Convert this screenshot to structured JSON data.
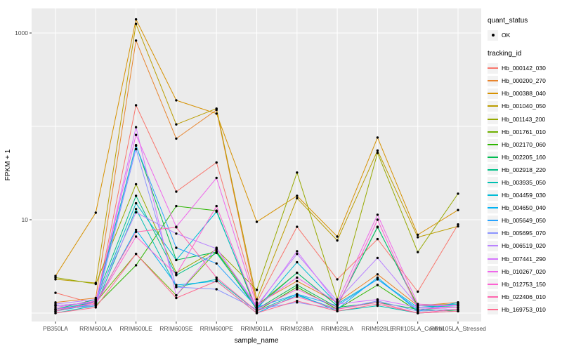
{
  "figure": {
    "background": "#FFFFFF",
    "panel_background": "#EBEBEB",
    "grid_color": "#FFFFFF",
    "tick_color": "#333333",
    "axis_text_color": "#4D4D4D",
    "axis_title_color": "#000000",
    "point_color": "#000000"
  },
  "legend": {
    "quant_status_title": "quant_status",
    "quant_status_items": [
      {
        "label": "OK",
        "symbol": "point"
      }
    ],
    "tracking_id_title": "tracking_id"
  },
  "chart_data": {
    "type": "line",
    "title": "",
    "xlabel": "sample_name",
    "ylabel": "FPKM + 1",
    "y_scale": "log10",
    "ylim": [
      0.82,
      1840
    ],
    "grid": true,
    "legend_position": "right",
    "y_axis_ticks": [
      {
        "label": "1000",
        "value": 1000
      },
      {
        "label": "10",
        "value": 10
      }
    ],
    "y_gridline_values": [
      1,
      10,
      100,
      1000
    ],
    "categories": [
      "PB350LA",
      "RRIM600LA",
      "RRIM600LE",
      "RRIM600SE",
      "RRIM600PE",
      "RRIM901LA",
      "RRIM928BA",
      "RRIM928LA",
      "RRIM928LE",
      "RRII105LA_Control",
      "RRII105LA_Stressed"
    ],
    "series": [
      {
        "name": "Hb_000142_030",
        "color": "#F8766D",
        "values": [
          1.65,
          1.25,
          168,
          20,
          41,
          1.3,
          8.4,
          2.3,
          6.2,
          1.7,
          8.9
        ]
      },
      {
        "name": "Hb_000200_270",
        "color": "#E8842C",
        "values": [
          1.3,
          1.45,
          830,
          74,
          150,
          1.25,
          2.2,
          1.3,
          2.6,
          1.2,
          1.3
        ]
      },
      {
        "name": "Hb_000388_040",
        "color": "#D69100",
        "values": [
          2.5,
          11.9,
          1400,
          190,
          137,
          9.5,
          18,
          6.6,
          76,
          6.9,
          12.7
        ]
      },
      {
        "name": "Hb_001040_050",
        "color": "#BB9D00",
        "values": [
          2.3,
          2.1,
          1250,
          105,
          155,
          1.4,
          17,
          6.0,
          55,
          6.5,
          8.5
        ]
      },
      {
        "name": "Hb_001143_200",
        "color": "#97A900",
        "values": [
          2.4,
          2.05,
          24,
          2.7,
          4.8,
          1.77,
          32,
          1.4,
          52,
          4.5,
          19
        ]
      },
      {
        "name": "Hb_001761_010",
        "color": "#6FB000",
        "values": [
          1.2,
          1.3,
          4.3,
          1.55,
          4.6,
          1.2,
          2.7,
          1.2,
          8.3,
          1.2,
          1.25
        ]
      },
      {
        "name": "Hb_002170_060",
        "color": "#2DB600",
        "values": [
          1.1,
          1.2,
          3.25,
          14,
          12.5,
          1.05,
          1.9,
          1.1,
          2.0,
          1.05,
          1.1
        ]
      },
      {
        "name": "Hb_002205_160",
        "color": "#00BC51",
        "values": [
          1.05,
          1.35,
          63,
          3.7,
          4.5,
          1.1,
          2.0,
          1.15,
          1.3,
          1.1,
          1.05
        ]
      },
      {
        "name": "Hb_002918_220",
        "color": "#00C087",
        "values": [
          1.1,
          1.4,
          18,
          2.55,
          4.4,
          1.15,
          2.7,
          1.2,
          8.4,
          1.15,
          1.2
        ]
      },
      {
        "name": "Hb_003935_050",
        "color": "#00C0B2",
        "values": [
          1.0,
          1.2,
          13,
          1.9,
          2.3,
          1.05,
          1.6,
          1.05,
          1.2,
          1.0,
          1.05
        ]
      },
      {
        "name": "Hb_004459_030",
        "color": "#00BCD6",
        "values": [
          1.1,
          1.3,
          15,
          3.7,
          12.2,
          1.1,
          3.5,
          1.25,
          2.3,
          1.15,
          1.25
        ]
      },
      {
        "name": "Hb_004650_040",
        "color": "#00B2F3",
        "values": [
          1.05,
          1.25,
          7.8,
          2.0,
          2.2,
          1.0,
          1.55,
          1.1,
          2.4,
          1.05,
          1.3
        ]
      },
      {
        "name": "Hb_005649_050",
        "color": "#29A3FF",
        "values": [
          1.2,
          1.3,
          62,
          5.0,
          3.4,
          1.15,
          1.6,
          1.2,
          2.3,
          1.1,
          1.15
        ]
      },
      {
        "name": "Hb_005695_070",
        "color": "#8B93FF",
        "values": [
          1.1,
          1.2,
          57,
          1.9,
          1.8,
          1.1,
          1.3,
          1.1,
          1.35,
          1.05,
          1.1
        ]
      },
      {
        "name": "Hb_006519_020",
        "color": "#B983FF",
        "values": [
          1.25,
          1.4,
          12,
          7.1,
          4.9,
          1.2,
          4.3,
          1.35,
          3.9,
          1.2,
          1.2
        ]
      },
      {
        "name": "Hb_007441_290",
        "color": "#D575FE",
        "values": [
          1.2,
          1.3,
          98,
          1.55,
          5.0,
          1.15,
          4.6,
          1.25,
          1.4,
          1.15,
          1.15
        ]
      },
      {
        "name": "Hb_010267_020",
        "color": "#EF67EB",
        "values": [
          1.15,
          1.35,
          81,
          8.4,
          28,
          1.2,
          2.4,
          1.3,
          11.3,
          1.25,
          1.2
        ]
      },
      {
        "name": "Hb_012753_150",
        "color": "#FD61D3",
        "values": [
          1.1,
          1.25,
          6.6,
          2.6,
          14,
          1.1,
          1.8,
          1.15,
          10,
          1.1,
          1.15
        ]
      },
      {
        "name": "Hb_022406_010",
        "color": "#FF65AE",
        "values": [
          1.05,
          1.3,
          7.4,
          8.3,
          2.4,
          1.05,
          1.5,
          1.1,
          1.3,
          1.0,
          1.1
        ]
      },
      {
        "name": "Hb_169753_010",
        "color": "#FF6C91",
        "values": [
          1.0,
          1.15,
          4.3,
          1.45,
          2.2,
          1.0,
          1.35,
          1.05,
          1.25,
          1.0,
          1.05
        ]
      }
    ]
  }
}
